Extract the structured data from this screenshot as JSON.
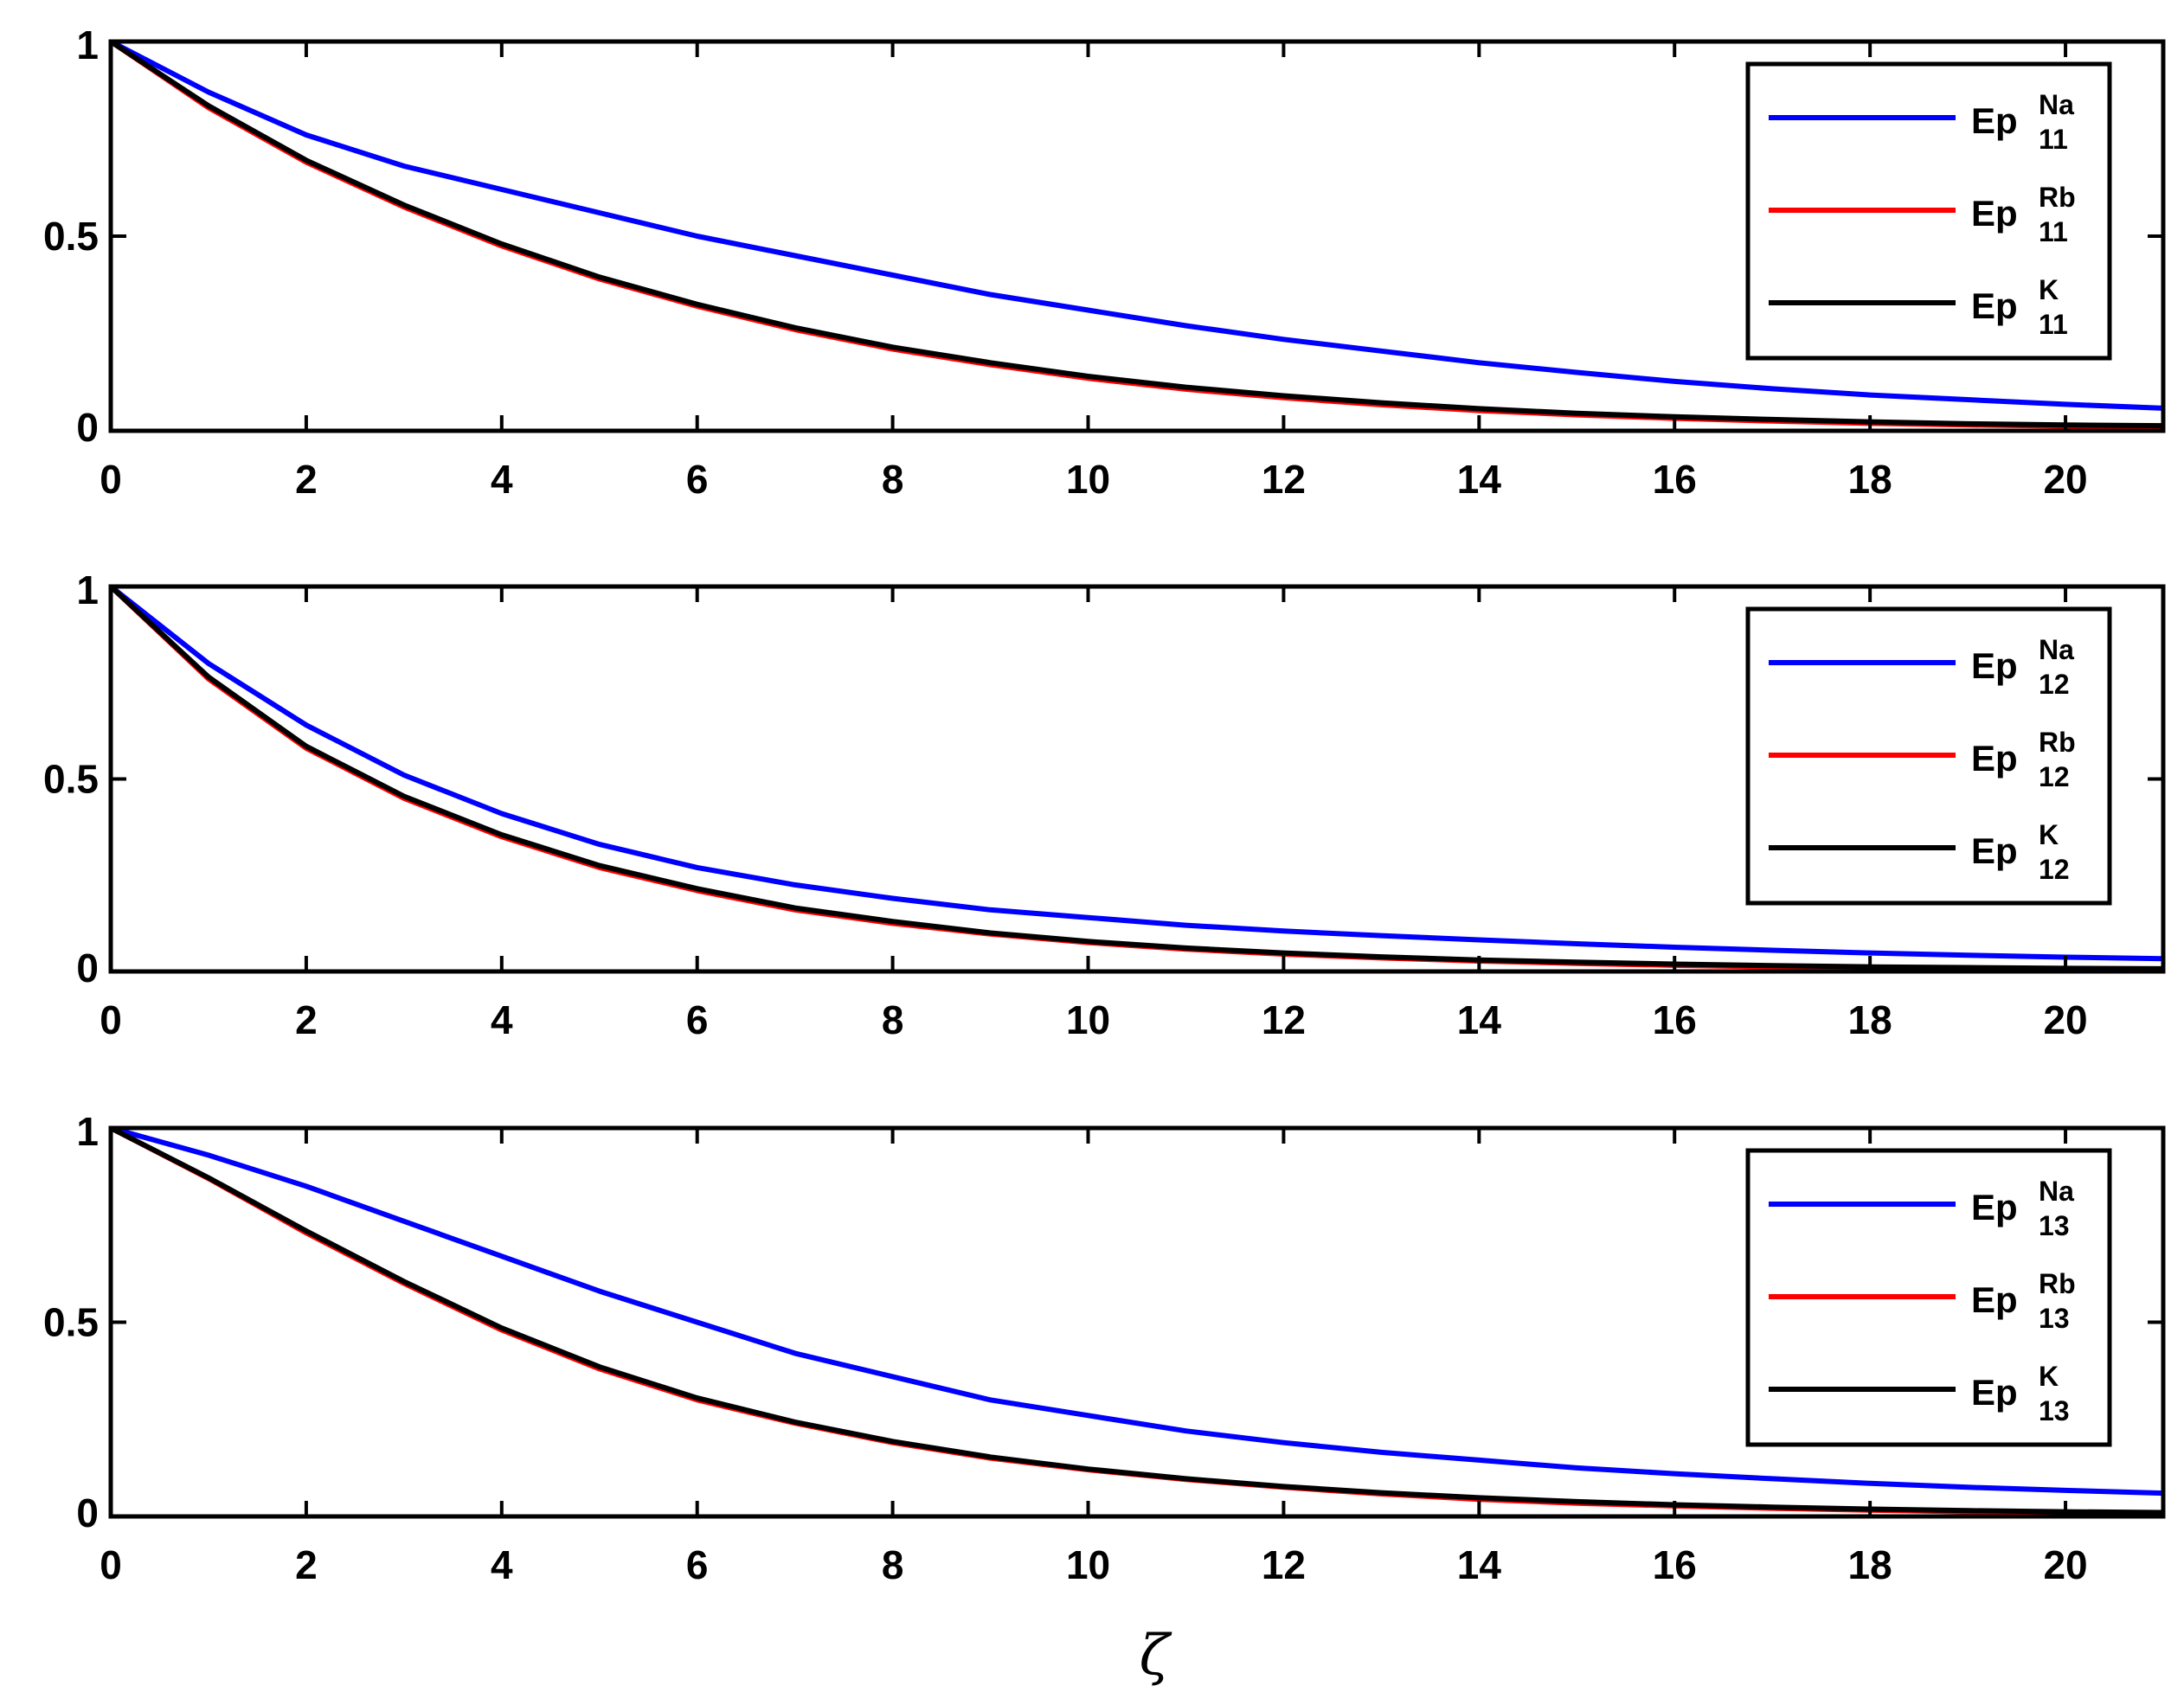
{
  "chart_data": [
    {
      "type": "line",
      "xlabel": "",
      "ylabel": "",
      "xlim": [
        0,
        21
      ],
      "ylim": [
        0,
        1
      ],
      "xticks": [
        "0",
        "2",
        "4",
        "6",
        "8",
        "10",
        "12",
        "14",
        "16",
        "18",
        "20"
      ],
      "yticks": [
        "0",
        "0.5",
        "1"
      ],
      "grid": false,
      "legend_position": "top-right",
      "x": [
        0,
        1,
        2,
        3,
        4,
        5,
        6,
        7,
        8,
        9,
        10,
        11,
        12,
        13,
        14,
        15,
        16,
        17,
        18,
        19,
        20,
        21
      ],
      "series": [
        {
          "name": "Ep",
          "sup": "Na",
          "sub": "11",
          "color": "#0000ff",
          "values": [
            1.0,
            0.87,
            0.76,
            0.68,
            0.62,
            0.56,
            0.5,
            0.45,
            0.4,
            0.35,
            0.31,
            0.27,
            0.235,
            0.205,
            0.175,
            0.15,
            0.127,
            0.108,
            0.092,
            0.08,
            0.068,
            0.058
          ]
        },
        {
          "name": "Ep",
          "sup": "Rb",
          "sub": "11",
          "color": "#ff0000",
          "values": [
            1.0,
            0.83,
            0.69,
            0.575,
            0.475,
            0.39,
            0.32,
            0.26,
            0.21,
            0.17,
            0.135,
            0.107,
            0.085,
            0.067,
            0.052,
            0.041,
            0.032,
            0.025,
            0.019,
            0.015,
            0.012,
            0.01
          ]
        },
        {
          "name": "Ep",
          "sup": "K",
          "sub": "11",
          "color": "#000000",
          "values": [
            1.0,
            0.835,
            0.695,
            0.58,
            0.48,
            0.395,
            0.325,
            0.265,
            0.215,
            0.175,
            0.14,
            0.112,
            0.09,
            0.072,
            0.057,
            0.045,
            0.036,
            0.029,
            0.023,
            0.018,
            0.015,
            0.013
          ]
        }
      ]
    },
    {
      "type": "line",
      "xlabel": "",
      "ylabel": "",
      "xlim": [
        0,
        21
      ],
      "ylim": [
        0,
        1
      ],
      "xticks": [
        "0",
        "2",
        "4",
        "6",
        "8",
        "10",
        "12",
        "14",
        "16",
        "18",
        "20"
      ],
      "yticks": [
        "0",
        "0.5",
        "1"
      ],
      "grid": false,
      "legend_position": "top-right",
      "x": [
        0,
        1,
        2,
        3,
        4,
        5,
        6,
        7,
        8,
        9,
        10,
        11,
        12,
        13,
        14,
        15,
        16,
        17,
        18,
        19,
        20,
        21
      ],
      "series": [
        {
          "name": "Ep",
          "sup": "Na",
          "sub": "12",
          "color": "#0000ff",
          "values": [
            1.0,
            0.8,
            0.64,
            0.51,
            0.41,
            0.33,
            0.27,
            0.225,
            0.19,
            0.16,
            0.14,
            0.12,
            0.105,
            0.093,
            0.082,
            0.072,
            0.063,
            0.055,
            0.048,
            0.042,
            0.037,
            0.033
          ]
        },
        {
          "name": "Ep",
          "sup": "Rb",
          "sub": "12",
          "color": "#ff0000",
          "values": [
            1.0,
            0.76,
            0.58,
            0.45,
            0.35,
            0.27,
            0.21,
            0.16,
            0.125,
            0.097,
            0.075,
            0.058,
            0.045,
            0.035,
            0.027,
            0.021,
            0.016,
            0.012,
            0.009,
            0.007,
            0.005,
            0.004
          ]
        },
        {
          "name": "Ep",
          "sup": "K",
          "sub": "12",
          "color": "#000000",
          "values": [
            1.0,
            0.765,
            0.585,
            0.455,
            0.355,
            0.275,
            0.215,
            0.165,
            0.13,
            0.1,
            0.078,
            0.061,
            0.048,
            0.038,
            0.03,
            0.024,
            0.019,
            0.015,
            0.012,
            0.01,
            0.008,
            0.007
          ]
        }
      ]
    },
    {
      "type": "line",
      "xlabel": "ζ",
      "ylabel": "",
      "xlim": [
        0,
        21
      ],
      "ylim": [
        0,
        1
      ],
      "xticks": [
        "0",
        "2",
        "4",
        "6",
        "8",
        "10",
        "12",
        "14",
        "16",
        "18",
        "20"
      ],
      "yticks": [
        "0",
        "0.5",
        "1"
      ],
      "grid": false,
      "legend_position": "top-right",
      "x": [
        0,
        1,
        2,
        3,
        4,
        5,
        6,
        7,
        8,
        9,
        10,
        11,
        12,
        13,
        14,
        15,
        16,
        17,
        18,
        19,
        20,
        21
      ],
      "series": [
        {
          "name": "Ep",
          "sup": "Na",
          "sub": "13",
          "color": "#0000ff",
          "values": [
            1.0,
            0.93,
            0.85,
            0.76,
            0.67,
            0.58,
            0.5,
            0.42,
            0.36,
            0.3,
            0.26,
            0.22,
            0.19,
            0.165,
            0.145,
            0.125,
            0.11,
            0.097,
            0.085,
            0.075,
            0.067,
            0.06
          ]
        },
        {
          "name": "Ep",
          "sup": "Rb",
          "sub": "13",
          "color": "#ff0000",
          "values": [
            1.0,
            0.87,
            0.73,
            0.6,
            0.48,
            0.38,
            0.3,
            0.24,
            0.19,
            0.15,
            0.12,
            0.095,
            0.075,
            0.058,
            0.044,
            0.034,
            0.027,
            0.021,
            0.016,
            0.012,
            0.009,
            0.007
          ]
        },
        {
          "name": "Ep",
          "sup": "K",
          "sub": "13",
          "color": "#000000",
          "values": [
            1.0,
            0.872,
            0.735,
            0.605,
            0.485,
            0.385,
            0.305,
            0.243,
            0.193,
            0.153,
            0.122,
            0.097,
            0.077,
            0.061,
            0.048,
            0.038,
            0.03,
            0.024,
            0.019,
            0.015,
            0.012,
            0.01
          ]
        }
      ]
    }
  ]
}
